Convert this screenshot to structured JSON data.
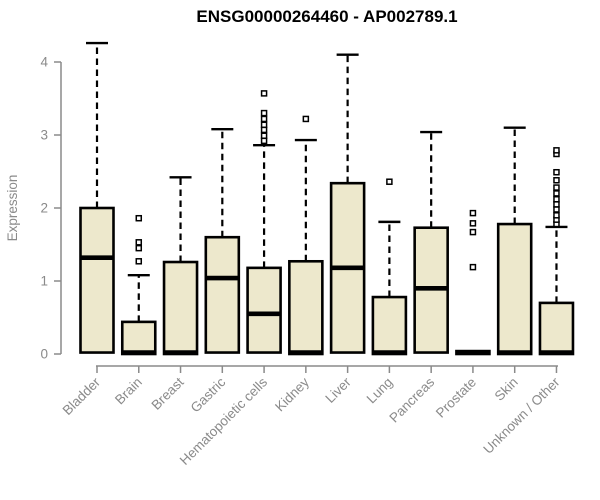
{
  "chart_data": {
    "type": "boxplot",
    "title": "ENSG00000264460 - AP002789.1",
    "ylabel": "Expression",
    "xlabel": "",
    "ylim": [
      0,
      4.3
    ],
    "yticks": [
      0,
      1,
      2,
      3,
      4
    ],
    "grid": false,
    "legend": null,
    "categories": [
      "Bladder",
      "Brain",
      "Breast",
      "Gastric",
      "Hematopoietic cells",
      "Kidney",
      "Liver",
      "Lung",
      "Pancreas",
      "Prostate",
      "Skin",
      "Unknown / Other"
    ],
    "series": [
      {
        "category": "Bladder",
        "whisker_low": 0,
        "q1": 0.02,
        "median": 1.32,
        "q3": 2.0,
        "whisker_high": 4.26,
        "outliers": []
      },
      {
        "category": "Brain",
        "whisker_low": 0,
        "q1": 0.0,
        "median": 0.02,
        "q3": 0.44,
        "whisker_high": 1.08,
        "outliers": [
          1.27,
          1.45,
          1.53,
          1.86
        ]
      },
      {
        "category": "Breast",
        "whisker_low": 0,
        "q1": 0.0,
        "median": 0.02,
        "q3": 1.26,
        "whisker_high": 2.42,
        "outliers": []
      },
      {
        "category": "Gastric",
        "whisker_low": 0,
        "q1": 0.02,
        "median": 1.04,
        "q3": 1.6,
        "whisker_high": 3.08,
        "outliers": []
      },
      {
        "category": "Hematopoietic cells",
        "whisker_low": 0,
        "q1": 0.02,
        "median": 0.55,
        "q3": 1.18,
        "whisker_high": 2.86,
        "outliers": [
          2.92,
          2.99,
          3.07,
          3.14,
          3.22,
          3.3,
          3.57
        ]
      },
      {
        "category": "Kidney",
        "whisker_low": 0,
        "q1": 0.0,
        "median": 0.02,
        "q3": 1.27,
        "whisker_high": 2.93,
        "outliers": [
          3.22
        ]
      },
      {
        "category": "Liver",
        "whisker_low": 0,
        "q1": 0.02,
        "median": 1.18,
        "q3": 2.34,
        "whisker_high": 4.1,
        "outliers": []
      },
      {
        "category": "Lung",
        "whisker_low": 0,
        "q1": 0.0,
        "median": 0.02,
        "q3": 0.78,
        "whisker_high": 1.81,
        "outliers": [
          2.36
        ]
      },
      {
        "category": "Pancreas",
        "whisker_low": 0,
        "q1": 0.02,
        "median": 0.9,
        "q3": 1.73,
        "whisker_high": 3.04,
        "outliers": []
      },
      {
        "category": "Prostate",
        "whisker_low": 0,
        "q1": 0.0,
        "median": 0.02,
        "q3": 0.04,
        "whisker_high": 0.04,
        "outliers": [
          1.19,
          1.67,
          1.79,
          1.93
        ]
      },
      {
        "category": "Skin",
        "whisker_low": 0,
        "q1": 0.0,
        "median": 0.02,
        "q3": 1.78,
        "whisker_high": 3.1,
        "outliers": []
      },
      {
        "category": "Unknown / Other",
        "whisker_low": 0,
        "q1": 0.0,
        "median": 0.02,
        "q3": 0.7,
        "whisker_high": 1.74,
        "outliers": [
          1.78,
          1.84,
          1.9,
          1.98,
          2.05,
          2.12,
          2.2,
          2.28,
          2.38,
          2.49,
          2.74,
          2.79
        ]
      }
    ],
    "colors": {
      "box_fill": "#EDE8CC",
      "box_border": "#000000",
      "median": "#000000",
      "whisker": "#000000",
      "outlier": "#000000",
      "axis": "#8a8a8a",
      "label": "#8a8a8a",
      "title": "#000000",
      "background": "#FFFFFF"
    }
  }
}
